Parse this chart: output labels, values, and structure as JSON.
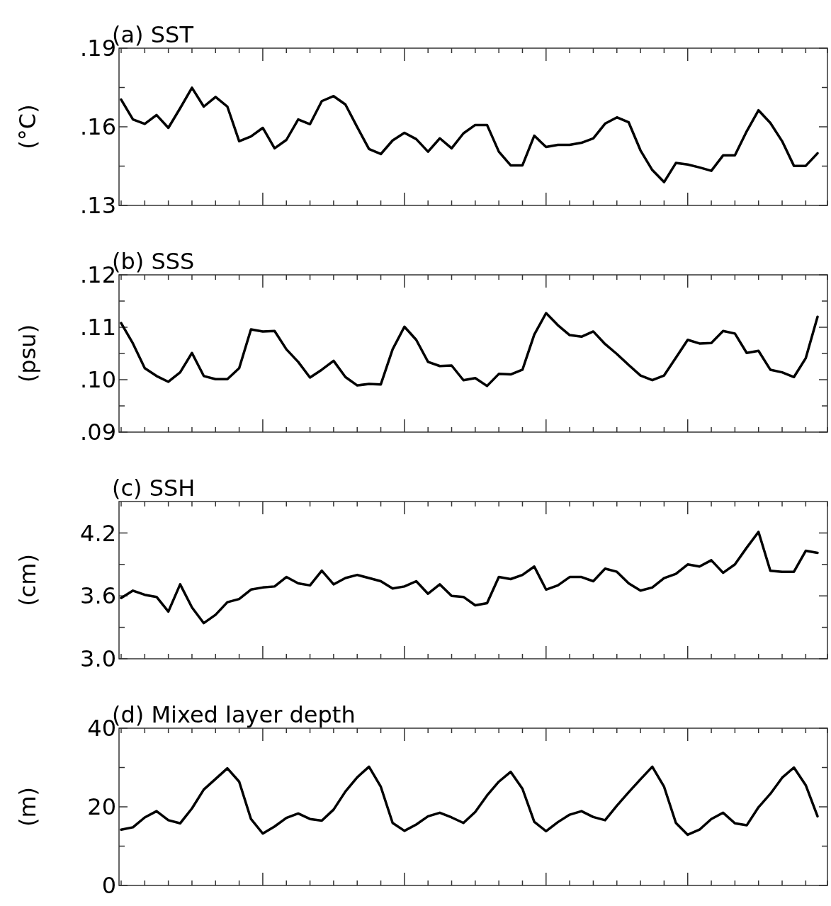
{
  "chart_data": [
    {
      "type": "line",
      "title": "(a) SST",
      "ylabel": "(°C)",
      "categories": [
        null,
        null,
        null,
        null,
        null,
        null,
        null,
        null,
        null,
        null,
        null,
        null,
        null,
        null,
        null,
        null,
        null,
        null,
        null,
        null,
        null,
        null,
        null,
        null,
        null,
        null,
        null,
        null,
        null,
        null,
        null,
        null,
        null,
        null,
        null,
        null,
        null,
        null,
        null,
        null,
        null,
        null,
        null,
        null,
        null,
        null,
        null,
        null,
        null,
        null,
        null,
        null,
        null,
        null,
        null,
        null,
        null,
        null,
        null,
        null
      ],
      "color": "#000000",
      "tick_labels": "y",
      "ylim": [
        0.13,
        0.19
      ],
      "yticks": [
        {
          "value": 0.13,
          "label": ".13"
        },
        {
          "value": 0.145,
          "label": null
        },
        {
          "value": 0.16,
          "label": ".16"
        },
        {
          "value": 0.175,
          "label": null
        },
        {
          "value": 0.19,
          "label": ".19"
        }
      ],
      "values": [
        0.1704,
        0.1628,
        0.1611,
        0.1645,
        0.1596,
        0.1671,
        0.1749,
        0.1677,
        0.1714,
        0.1677,
        0.1545,
        0.1563,
        0.1596,
        0.1518,
        0.155,
        0.1628,
        0.161,
        0.1698,
        0.1717,
        0.1685,
        0.1599,
        0.1515,
        0.1496,
        0.1548,
        0.1577,
        0.1553,
        0.1505,
        0.1556,
        0.1518,
        0.1575,
        0.1607,
        0.1607,
        0.1505,
        0.1453,
        0.1453,
        0.1566,
        0.1523,
        0.1531,
        0.1531,
        0.1539,
        0.1556,
        0.1612,
        0.1636,
        0.1617,
        0.151,
        0.1435,
        0.1389,
        0.1462,
        0.1456,
        0.1445,
        0.1432,
        0.1491,
        0.1491,
        0.1583,
        0.1663,
        0.1615,
        0.1545,
        0.1451,
        0.1451,
        0.1499
      ]
    },
    {
      "type": "line",
      "title": "(b) SSS",
      "ylabel": "(psu)",
      "categories": [
        null,
        null,
        null,
        null,
        null,
        null,
        null,
        null,
        null,
        null,
        null,
        null,
        null,
        null,
        null,
        null,
        null,
        null,
        null,
        null,
        null,
        null,
        null,
        null,
        null,
        null,
        null,
        null,
        null,
        null,
        null,
        null,
        null,
        null,
        null,
        null,
        null,
        null,
        null,
        null,
        null,
        null,
        null,
        null,
        null,
        null,
        null,
        null,
        null,
        null,
        null,
        null,
        null,
        null,
        null,
        null,
        null,
        null,
        null,
        null
      ],
      "color": "#000000",
      "tick_labels": "y",
      "ylim": [
        0.09,
        0.12
      ],
      "yticks": [
        {
          "value": 0.09,
          "label": ".09"
        },
        {
          "value": 0.095,
          "label": null
        },
        {
          "value": 0.1,
          "label": ".10"
        },
        {
          "value": 0.105,
          "label": null
        },
        {
          "value": 0.11,
          "label": ".11"
        },
        {
          "value": 0.115,
          "label": null
        },
        {
          "value": 0.12,
          "label": ".12"
        }
      ],
      "values": [
        0.1108,
        0.1069,
        0.1022,
        0.1007,
        0.0996,
        0.1014,
        0.1051,
        0.1007,
        0.1001,
        0.1001,
        0.1022,
        0.1096,
        0.1092,
        0.1093,
        0.1058,
        0.1034,
        0.1004,
        0.1019,
        0.1036,
        0.1005,
        0.0989,
        0.0992,
        0.0991,
        0.1058,
        0.1101,
        0.1076,
        0.1034,
        0.1026,
        0.1027,
        0.0999,
        0.1003,
        0.0988,
        0.1011,
        0.101,
        0.1019,
        0.1086,
        0.1127,
        0.1104,
        0.1085,
        0.1082,
        0.1092,
        0.1068,
        0.1049,
        0.1028,
        0.1008,
        0.0999,
        0.1008,
        0.1042,
        0.1076,
        0.1069,
        0.107,
        0.1093,
        0.1088,
        0.1051,
        0.1055,
        0.1019,
        0.1014,
        0.1005,
        0.1041,
        0.112
      ]
    },
    {
      "type": "line",
      "title": "(c) SSH",
      "ylabel": "(cm)",
      "categories": [
        null,
        null,
        null,
        null,
        null,
        null,
        null,
        null,
        null,
        null,
        null,
        null,
        null,
        null,
        null,
        null,
        null,
        null,
        null,
        null,
        null,
        null,
        null,
        null,
        null,
        null,
        null,
        null,
        null,
        null,
        null,
        null,
        null,
        null,
        null,
        null,
        null,
        null,
        null,
        null,
        null,
        null,
        null,
        null,
        null,
        null,
        null,
        null,
        null,
        null,
        null,
        null,
        null,
        null,
        null,
        null,
        null,
        null,
        null,
        null
      ],
      "color": "#000000",
      "tick_labels": "y",
      "ylim": [
        3.0,
        4.5
      ],
      "yticks": [
        {
          "value": 3.0,
          "label": "3.0"
        },
        {
          "value": 3.3,
          "label": null
        },
        {
          "value": 3.6,
          "label": "3.6"
        },
        {
          "value": 3.9,
          "label": null
        },
        {
          "value": 4.2,
          "label": "4.2"
        }
      ],
      "values": [
        3.58,
        3.65,
        3.61,
        3.59,
        3.45,
        3.71,
        3.49,
        3.34,
        3.42,
        3.54,
        3.57,
        3.66,
        3.68,
        3.69,
        3.78,
        3.72,
        3.7,
        3.84,
        3.71,
        3.77,
        3.8,
        3.77,
        3.74,
        3.67,
        3.69,
        3.74,
        3.62,
        3.71,
        3.6,
        3.59,
        3.51,
        3.53,
        3.78,
        3.76,
        3.8,
        3.88,
        3.66,
        3.7,
        3.78,
        3.78,
        3.74,
        3.86,
        3.83,
        3.72,
        3.65,
        3.68,
        3.77,
        3.81,
        3.9,
        3.88,
        3.94,
        3.82,
        3.9,
        4.06,
        4.21,
        3.84,
        3.83,
        3.83,
        4.03,
        4.01
      ]
    },
    {
      "type": "line",
      "title": "(d) Mixed layer depth",
      "ylabel": "(m)",
      "categories": [
        null,
        null,
        null,
        null,
        null,
        null,
        null,
        null,
        null,
        null,
        null,
        null,
        null,
        null,
        null,
        null,
        null,
        null,
        null,
        null,
        null,
        null,
        null,
        null,
        null,
        null,
        null,
        null,
        null,
        null,
        null,
        null,
        null,
        null,
        null,
        null,
        null,
        null,
        null,
        null,
        null,
        null,
        null,
        null,
        null,
        null,
        null,
        null,
        null,
        null,
        null,
        null,
        null,
        null,
        null,
        null,
        null,
        null,
        null,
        null
      ],
      "color": "#000000",
      "tick_labels": "y",
      "ylim": [
        0,
        40
      ],
      "yticks": [
        0,
        {
          "value": 10,
          "label": null
        },
        20,
        {
          "value": 30,
          "label": null
        },
        40
      ],
      "values": [
        14.2,
        14.8,
        17.3,
        18.9,
        16.6,
        15.8,
        19.6,
        24.4,
        27.1,
        29.8,
        26.4,
        16.9,
        13.2,
        15,
        17.2,
        18.3,
        16.9,
        16.5,
        19.3,
        23.9,
        27.5,
        30.2,
        25.1,
        15.9,
        13.9,
        15.5,
        17.6,
        18.5,
        17.3,
        15.9,
        18.7,
        22.9,
        26.4,
        28.9,
        24.6,
        16.2,
        13.8,
        16.1,
        18,
        18.9,
        17.4,
        16.6,
        20.3,
        23.7,
        27,
        30.2,
        25.1,
        15.9,
        12.9,
        14.2,
        16.9,
        18.5,
        15.8,
        15.3,
        19.9,
        23.3,
        27.4,
        30,
        25.5,
        17.6
      ]
    }
  ]
}
